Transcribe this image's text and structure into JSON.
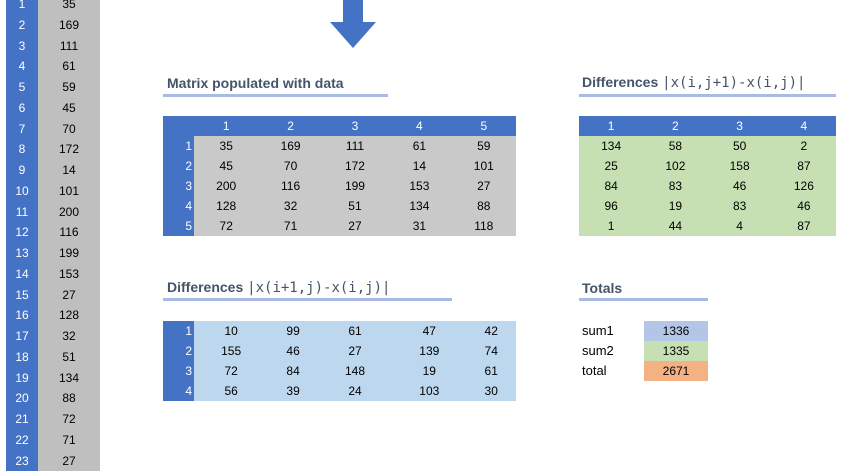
{
  "index_column": {
    "rows": [
      {
        "n": "1",
        "v": "35"
      },
      {
        "n": "2",
        "v": "169"
      },
      {
        "n": "3",
        "v": "111"
      },
      {
        "n": "4",
        "v": "61"
      },
      {
        "n": "5",
        "v": "59"
      },
      {
        "n": "6",
        "v": "45"
      },
      {
        "n": "7",
        "v": "70"
      },
      {
        "n": "8",
        "v": "172"
      },
      {
        "n": "9",
        "v": "14"
      },
      {
        "n": "10",
        "v": "101"
      },
      {
        "n": "11",
        "v": "200"
      },
      {
        "n": "12",
        "v": "116"
      },
      {
        "n": "13",
        "v": "199"
      },
      {
        "n": "14",
        "v": "153"
      },
      {
        "n": "15",
        "v": "27"
      },
      {
        "n": "16",
        "v": "128"
      },
      {
        "n": "17",
        "v": "32"
      },
      {
        "n": "18",
        "v": "51"
      },
      {
        "n": "19",
        "v": "134"
      },
      {
        "n": "20",
        "v": "88"
      },
      {
        "n": "21",
        "v": "72"
      },
      {
        "n": "22",
        "v": "71"
      },
      {
        "n": "23",
        "v": "27"
      }
    ]
  },
  "arrow": {
    "icon": "down-arrow-icon",
    "color": "#4472c4"
  },
  "matrix": {
    "title": "Matrix populated with data",
    "col_headers": [
      "1",
      "2",
      "3",
      "4",
      "5"
    ],
    "row_headers": [
      "1",
      "2",
      "3",
      "4",
      "5"
    ],
    "rows": [
      [
        "35",
        "169",
        "111",
        "61",
        "59"
      ],
      [
        "45",
        "70",
        "172",
        "14",
        "101"
      ],
      [
        "200",
        "116",
        "199",
        "153",
        "27"
      ],
      [
        "128",
        "32",
        "51",
        "134",
        "88"
      ],
      [
        "72",
        "71",
        "27",
        "31",
        "118"
      ]
    ]
  },
  "diff_row": {
    "title": "Differences ",
    "formula": "|x(i,j+1)-x(i,j)|",
    "col_headers": [
      "1",
      "2",
      "3",
      "4"
    ],
    "rows": [
      [
        "134",
        "58",
        "50",
        "2"
      ],
      [
        "25",
        "102",
        "158",
        "87"
      ],
      [
        "84",
        "83",
        "46",
        "126"
      ],
      [
        "96",
        "19",
        "83",
        "46"
      ],
      [
        "1",
        "44",
        "4",
        "87"
      ]
    ]
  },
  "diff_col": {
    "title": "Differences ",
    "formula": "|x(i+1,j)-x(i,j)|",
    "row_headers": [
      "1",
      "2",
      "3",
      "4"
    ],
    "rows": [
      [
        "10",
        "99",
        "61",
        "47",
        "42"
      ],
      [
        "155",
        "46",
        "27",
        "139",
        "74"
      ],
      [
        "72",
        "84",
        "148",
        "19",
        "61"
      ],
      [
        "56",
        "39",
        "24",
        "103",
        "30"
      ]
    ]
  },
  "totals": {
    "title": "Totals",
    "items": [
      {
        "label": "sum1",
        "value": "1336",
        "color": "#b4c6e7"
      },
      {
        "label": "sum2",
        "value": "1335",
        "color": "#c6e0b4"
      },
      {
        "label": "total",
        "value": "2671",
        "color": "#f4b183"
      }
    ]
  },
  "colors": {
    "accent": "#4472c4",
    "grey_fill": "#c9c9c9",
    "green_fill": "#c6e0b4",
    "blue_fill": "#bdd7ee",
    "heading": "#44546a"
  }
}
